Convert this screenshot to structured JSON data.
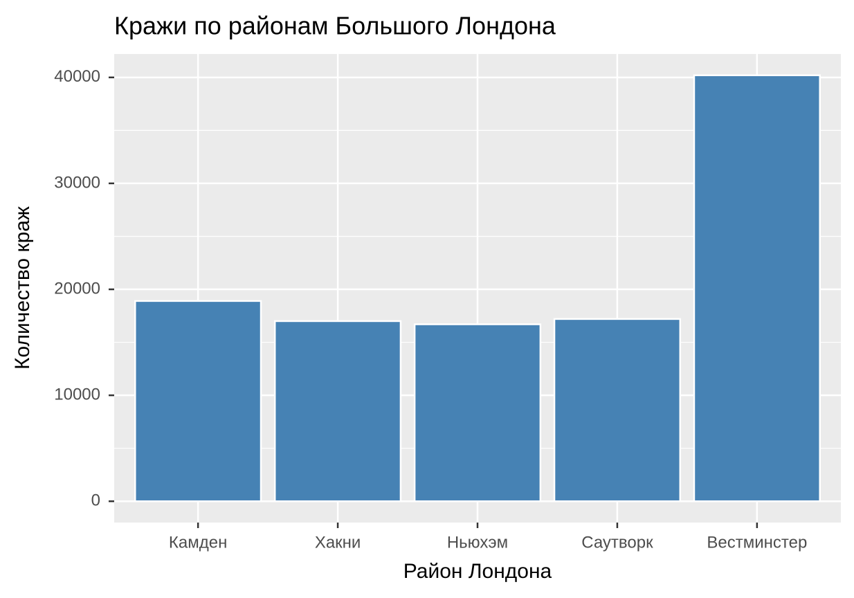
{
  "chart_data": {
    "type": "bar",
    "title": "Кражи по районам Большого Лондона",
    "x_label": "Район Лондона",
    "y_label": "Количество краж",
    "categories": [
      "Камден",
      "Хакни",
      "Ньюхэм",
      "Саутворк",
      "Вестминстер"
    ],
    "values": [
      18900,
      17000,
      16700,
      17200,
      40200
    ],
    "color": "#4682b4",
    "ylim": [
      -2010,
      42210
    ],
    "yticks": [
      0,
      10000,
      20000,
      30000,
      40000
    ],
    "grid": true
  }
}
